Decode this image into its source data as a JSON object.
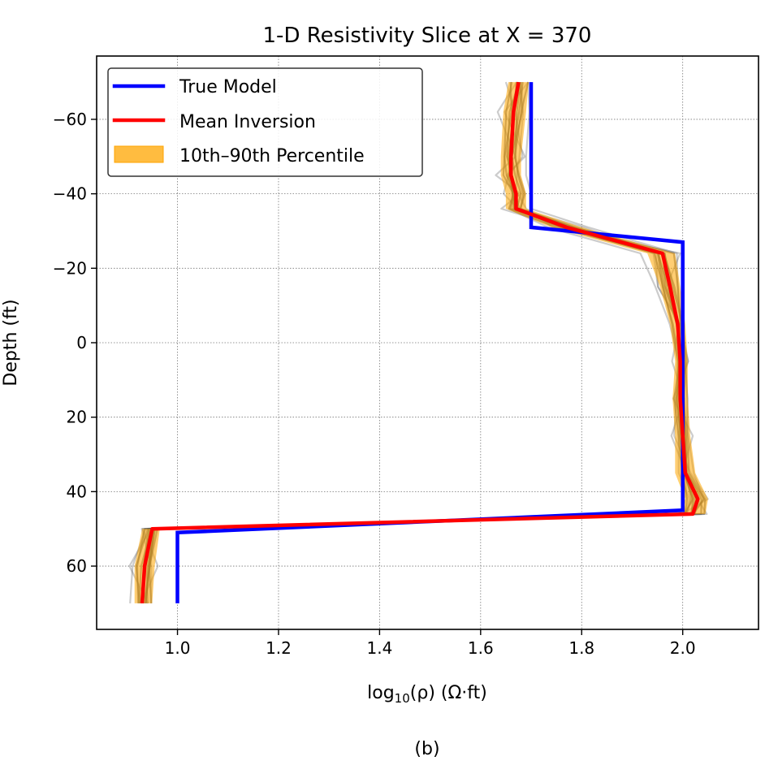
{
  "chart_data": {
    "type": "line",
    "title": "1-D Resistivity Slice at X = 370",
    "xlabel_main": "log",
    "xlabel_sub": "10",
    "xlabel_rest": "(ρ) (Ω·ft)",
    "ylabel": "Depth (ft)",
    "caption": "(b)",
    "xlim": [
      0.84,
      2.15
    ],
    "ylim": [
      77,
      -77
    ],
    "y_inverted": true,
    "grid": true,
    "legend_position": "upper-left",
    "xticks": [
      1.0,
      1.2,
      1.4,
      1.6,
      1.8,
      2.0
    ],
    "xtick_labels": [
      "1.0",
      "1.2",
      "1.4",
      "1.6",
      "1.8",
      "2.0"
    ],
    "yticks": [
      -60,
      -40,
      -20,
      0,
      20,
      40,
      60
    ],
    "ytick_labels": [
      "−60",
      "−40",
      "−20",
      "0",
      "20",
      "40",
      "60"
    ],
    "legend": [
      "True Model",
      "Mean Inversion",
      "10th–90th Percentile"
    ],
    "colors": {
      "true_model": "#0000ff",
      "mean_inversion": "#ff0000",
      "percentile_fill": "#ffa500",
      "samples": "#555555"
    },
    "series": [
      {
        "name": "True Model",
        "points": [
          [
            1.7,
            -70
          ],
          [
            1.7,
            -31
          ],
          [
            2.0,
            -27
          ],
          [
            2.0,
            45
          ],
          [
            1.0,
            51
          ],
          [
            1.0,
            70
          ]
        ]
      },
      {
        "name": "Mean Inversion",
        "points": [
          [
            1.675,
            -70
          ],
          [
            1.665,
            -62
          ],
          [
            1.66,
            -50
          ],
          [
            1.66,
            -45
          ],
          [
            1.67,
            -40
          ],
          [
            1.67,
            -36
          ],
          [
            1.77,
            -31
          ],
          [
            1.96,
            -24
          ],
          [
            1.975,
            -15
          ],
          [
            1.99,
            -5
          ],
          [
            1.995,
            5
          ],
          [
            1.995,
            15
          ],
          [
            2.0,
            25
          ],
          [
            2.005,
            35
          ],
          [
            2.03,
            42
          ],
          [
            2.02,
            46
          ],
          [
            0.95,
            50
          ],
          [
            0.935,
            60
          ],
          [
            0.93,
            70
          ]
        ]
      },
      {
        "name": "10th–90th Percentile",
        "lower": [
          [
            1.655,
            -70
          ],
          [
            1.645,
            -62
          ],
          [
            1.64,
            -50
          ],
          [
            1.64,
            -45
          ],
          [
            1.65,
            -40
          ],
          [
            1.65,
            -36
          ],
          [
            1.74,
            -31
          ],
          [
            1.93,
            -24
          ],
          [
            1.955,
            -15
          ],
          [
            1.975,
            -5
          ],
          [
            1.985,
            5
          ],
          [
            1.98,
            15
          ],
          [
            1.985,
            25
          ],
          [
            1.985,
            35
          ],
          [
            2.005,
            42
          ],
          [
            1.99,
            46
          ],
          [
            0.93,
            50
          ],
          [
            0.915,
            60
          ],
          [
            0.915,
            70
          ]
        ],
        "upper": [
          [
            1.695,
            -70
          ],
          [
            1.69,
            -62
          ],
          [
            1.68,
            -50
          ],
          [
            1.68,
            -45
          ],
          [
            1.69,
            -40
          ],
          [
            1.69,
            -36
          ],
          [
            1.8,
            -31
          ],
          [
            1.985,
            -24
          ],
          [
            1.995,
            -15
          ],
          [
            2.005,
            -5
          ],
          [
            2.01,
            5
          ],
          [
            2.01,
            15
          ],
          [
            2.015,
            25
          ],
          [
            2.025,
            35
          ],
          [
            2.05,
            42
          ],
          [
            2.045,
            46
          ],
          [
            0.965,
            50
          ],
          [
            0.955,
            60
          ],
          [
            0.95,
            70
          ]
        ]
      }
    ]
  }
}
